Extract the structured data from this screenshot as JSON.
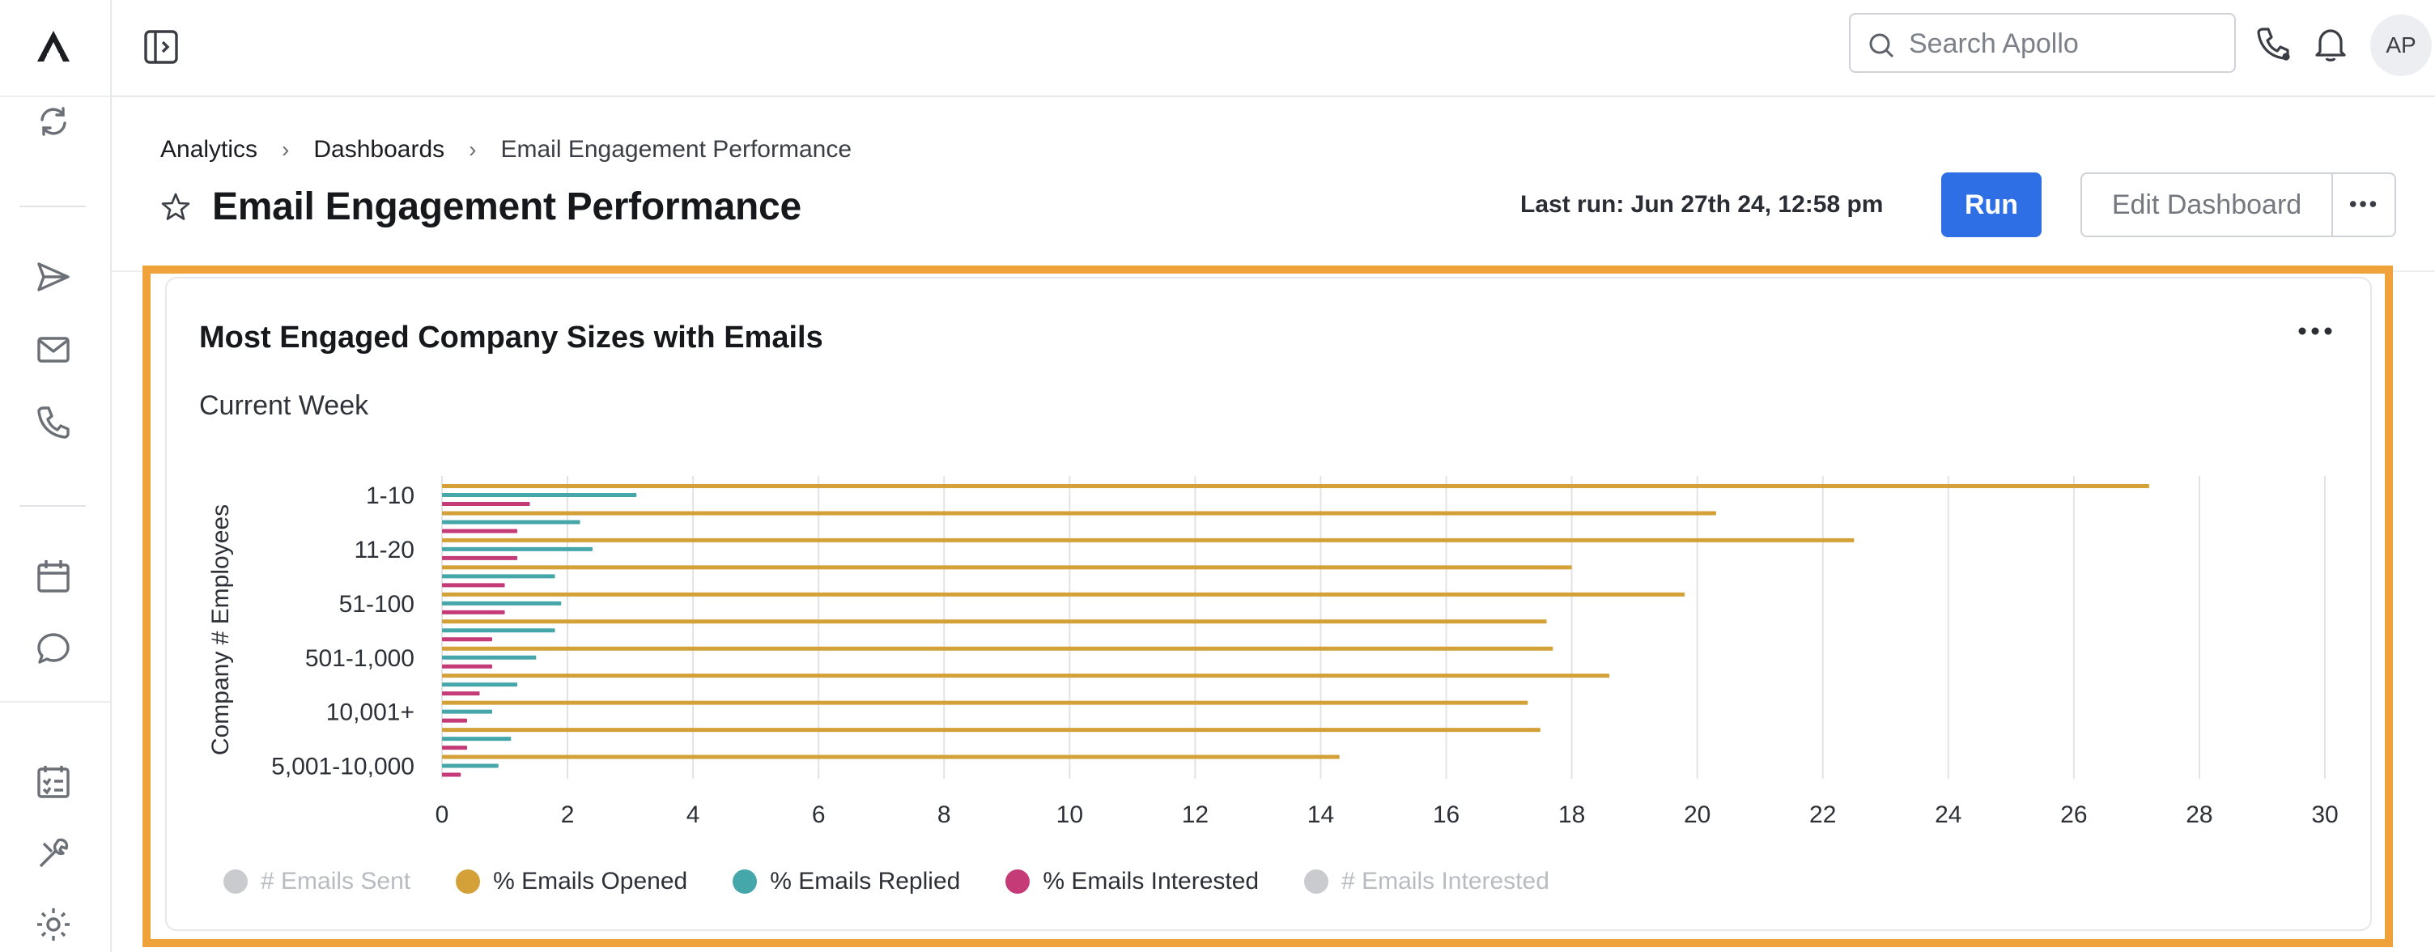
{
  "topbar": {
    "search_placeholder": "Search Apollo",
    "avatar_initials": "AP"
  },
  "breadcrumb": [
    "Analytics",
    "Dashboards",
    "Email Engagement Performance"
  ],
  "page": {
    "title": "Email Engagement Performance",
    "last_run": "Last run: Jun 27th 24, 12:58 pm",
    "run_label": "Run",
    "edit_label": "Edit Dashboard"
  },
  "card": {
    "title": "Most Engaged Company Sizes with Emails",
    "subtitle": "Current Week"
  },
  "colors": {
    "accent": "#2f6fe6",
    "highlight": "#f0a23a",
    "opened": "#d4a138",
    "replied": "#46a7ab",
    "interested": "#c43b78",
    "disabled": "#c9cbce"
  },
  "chart_data": {
    "type": "bar",
    "orientation": "horizontal",
    "ylabel": "Company # Employees",
    "xlim": [
      0,
      30
    ],
    "xticks": [
      0,
      2,
      4,
      6,
      8,
      10,
      12,
      14,
      16,
      18,
      20,
      22,
      24,
      26,
      28,
      30
    ],
    "yticks": [
      "1-10",
      "11-20",
      "51-100",
      "501-1,000",
      "10,001+",
      "5,001-10,000"
    ],
    "categories": [
      "1-10",
      "",
      "11-20",
      "",
      "51-100",
      "",
      "501-1,000",
      "",
      "10,001+",
      "",
      "5,001-10,000"
    ],
    "series": [
      {
        "name": "% Emails Opened",
        "color": "#d4a138",
        "values": [
          27.2,
          20.3,
          22.5,
          18.0,
          19.8,
          17.6,
          17.7,
          18.6,
          17.3,
          17.5,
          14.3
        ]
      },
      {
        "name": "% Emails Replied",
        "color": "#46a7ab",
        "values": [
          3.1,
          2.2,
          2.4,
          1.8,
          1.9,
          1.8,
          1.5,
          1.2,
          0.8,
          1.1,
          0.9
        ]
      },
      {
        "name": "% Emails Interested",
        "color": "#c43b78",
        "values": [
          1.4,
          1.2,
          1.2,
          1.0,
          1.0,
          0.8,
          0.8,
          0.6,
          0.4,
          0.4,
          0.3
        ]
      }
    ],
    "grid": true,
    "legend": [
      {
        "label": "# Emails Sent",
        "color": "#c9cbce",
        "disabled": true
      },
      {
        "label": "% Emails Opened",
        "color": "#d4a138",
        "disabled": false
      },
      {
        "label": "% Emails Replied",
        "color": "#46a7ab",
        "disabled": false
      },
      {
        "label": "% Emails Interested",
        "color": "#c43b78",
        "disabled": false
      },
      {
        "label": "# Emails Interested",
        "color": "#c9cbce",
        "disabled": true
      }
    ],
    "legend_position": "bottom-left"
  }
}
